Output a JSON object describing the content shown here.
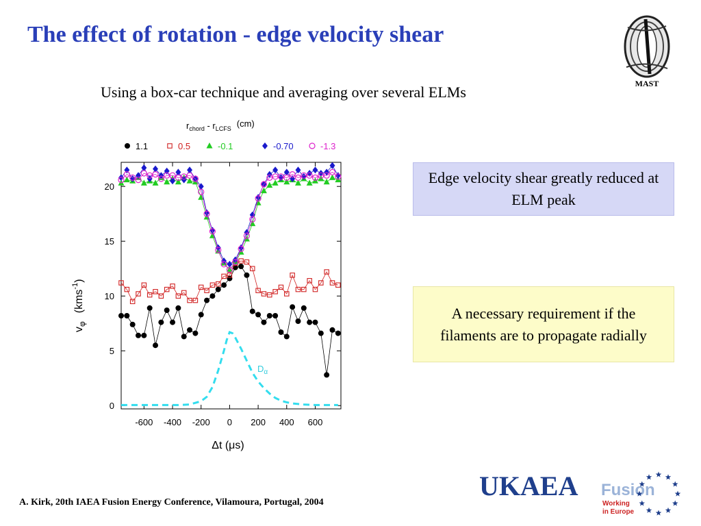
{
  "slide": {
    "title": "The effect of rotation - edge velocity shear",
    "subtitle": "Using a box-car technique and averaging over several ELMs",
    "box1": "Edge velocity shear greatly reduced at ELM peak",
    "box2": "A necessary requirement if the filaments are to propagate radially",
    "footer": "A. Kirk, 20th IAEA Fusion Energy Conference, Vilamoura, Portugal, 2004",
    "mast_label": "MAST",
    "ukaea_text": "UKAEA",
    "fusion_text": "Fusion",
    "working_text": "Working",
    "europe_text": "in Europe"
  },
  "chart_data": {
    "type": "scatter",
    "legend_title_main": "r",
    "legend_title_sub1": "chord",
    "legend_title_mid": " - r",
    "legend_title_sub2": "LCFS",
    "legend_title_unit": "(cm)",
    "xlabel": "Δt (μs)",
    "ylabel_main": "v",
    "ylabel_sub": "φ",
    "ylabel_unit": "(kms",
    "ylabel_exp": "-1",
    "ylabel_close": ")",
    "xlim": [
      -760,
      780
    ],
    "ylim": [
      -0.3,
      22.2
    ],
    "xticks": [
      -600,
      -400,
      -200,
      0,
      200,
      400,
      600
    ],
    "yticks": [
      0,
      5,
      10,
      15,
      20
    ],
    "dalpha_label": "D",
    "dalpha_sub": "α",
    "series": [
      {
        "name": "1.1",
        "color": "#000000",
        "marker": "filled-circle",
        "x": [
          -760,
          -720,
          -680,
          -640,
          -600,
          -560,
          -520,
          -480,
          -440,
          -400,
          -360,
          -320,
          -280,
          -240,
          -200,
          -160,
          -120,
          -80,
          -40,
          0,
          40,
          80,
          120,
          160,
          200,
          240,
          280,
          320,
          360,
          400,
          440,
          480,
          520,
          560,
          600,
          640,
          680,
          720,
          760
        ],
        "y": [
          8.2,
          8.2,
          7.4,
          6.4,
          6.4,
          8.9,
          5.5,
          7.6,
          8.7,
          7.6,
          8.9,
          6.3,
          6.9,
          6.6,
          8.3,
          9.6,
          10.0,
          10.6,
          11.0,
          11.6,
          12.6,
          12.7,
          11.9,
          8.6,
          8.3,
          7.6,
          8.2,
          8.2,
          6.7,
          6.3,
          9.0,
          7.7,
          8.9,
          7.6,
          7.6,
          6.6,
          2.8,
          6.9,
          6.6
        ]
      },
      {
        "name": "0.5",
        "color": "#d02020",
        "marker": "open-square",
        "x": [
          -760,
          -720,
          -680,
          -640,
          -600,
          -560,
          -520,
          -480,
          -440,
          -400,
          -360,
          -320,
          -280,
          -240,
          -200,
          -160,
          -120,
          -80,
          -40,
          0,
          40,
          80,
          120,
          160,
          200,
          240,
          280,
          320,
          360,
          400,
          440,
          480,
          520,
          560,
          600,
          640,
          680,
          720,
          760
        ],
        "y": [
          11.2,
          10.6,
          9.5,
          10.2,
          11.0,
          10.1,
          10.4,
          10.0,
          10.6,
          10.9,
          10.0,
          10.3,
          9.6,
          9.6,
          10.8,
          10.5,
          11.0,
          11.1,
          11.8,
          11.9,
          13.0,
          13.2,
          13.1,
          12.5,
          10.5,
          10.2,
          10.1,
          10.4,
          10.8,
          10.2,
          11.9,
          10.6,
          10.6,
          11.4,
          10.6,
          11.2,
          12.2,
          11.2,
          11.0
        ]
      },
      {
        "name": "-0.1",
        "color": "#22cc22",
        "marker": "filled-triangle",
        "x": [
          -760,
          -720,
          -680,
          -640,
          -600,
          -560,
          -520,
          -480,
          -440,
          -400,
          -360,
          -320,
          -280,
          -240,
          -200,
          -160,
          -120,
          -80,
          -40,
          0,
          40,
          80,
          120,
          160,
          200,
          240,
          280,
          320,
          360,
          400,
          440,
          480,
          520,
          560,
          600,
          640,
          680,
          720,
          760
        ],
        "y": [
          20.3,
          20.6,
          20.5,
          20.8,
          20.3,
          20.5,
          20.3,
          20.8,
          20.4,
          20.7,
          20.4,
          20.8,
          20.5,
          20.4,
          19.0,
          17.2,
          15.5,
          14.1,
          13.0,
          12.4,
          13.1,
          14.0,
          15.2,
          16.6,
          18.5,
          19.6,
          20.1,
          20.3,
          20.6,
          20.4,
          20.6,
          20.3,
          20.7,
          20.3,
          20.5,
          20.7,
          20.4,
          20.8,
          20.6
        ]
      },
      {
        "name": "-0.70",
        "color": "#1a1acc",
        "marker": "filled-diamond",
        "x": [
          -760,
          -720,
          -680,
          -640,
          -600,
          -560,
          -520,
          -480,
          -440,
          -400,
          -360,
          -320,
          -280,
          -240,
          -200,
          -160,
          -120,
          -80,
          -40,
          0,
          40,
          80,
          120,
          160,
          200,
          240,
          280,
          320,
          360,
          400,
          440,
          480,
          520,
          560,
          600,
          640,
          680,
          720,
          760
        ],
        "y": [
          20.8,
          21.5,
          20.7,
          21.0,
          21.7,
          20.7,
          21.6,
          21.0,
          21.4,
          20.5,
          21.3,
          20.6,
          21.5,
          20.7,
          20.0,
          17.6,
          16.0,
          14.4,
          13.2,
          12.9,
          13.3,
          14.4,
          15.8,
          17.4,
          19.0,
          20.2,
          21.1,
          21.5,
          20.8,
          21.3,
          20.7,
          21.5,
          20.9,
          21.2,
          21.5,
          21.2,
          21.3,
          21.9,
          21.0
        ]
      },
      {
        "name": "-1.3",
        "color": "#dd22cc",
        "marker": "open-circle",
        "x": [
          -760,
          -720,
          -680,
          -640,
          -600,
          -560,
          -520,
          -480,
          -440,
          -400,
          -360,
          -320,
          -280,
          -240,
          -200,
          -160,
          -120,
          -80,
          -40,
          0,
          40,
          80,
          120,
          160,
          200,
          240,
          280,
          320,
          360,
          400,
          440,
          480,
          520,
          560,
          600,
          640,
          680,
          720,
          760
        ],
        "y": [
          20.6,
          21.1,
          20.8,
          20.6,
          21.2,
          21.0,
          21.1,
          20.7,
          21.0,
          21.0,
          20.8,
          20.9,
          21.0,
          20.7,
          19.5,
          17.5,
          15.9,
          14.2,
          12.9,
          12.4,
          13.1,
          14.3,
          15.5,
          17.0,
          18.9,
          20.2,
          20.8,
          20.9,
          20.9,
          20.8,
          21.1,
          20.8,
          21.0,
          21.0,
          20.8,
          21.0,
          21.0,
          21.3,
          20.9
        ]
      },
      {
        "name": "Dα",
        "color": "#33ddee",
        "marker": "dashed-line",
        "x": [
          -760,
          -680,
          -600,
          -520,
          -440,
          -360,
          -280,
          -200,
          -160,
          -120,
          -80,
          -40,
          -20,
          0,
          20,
          40,
          80,
          120,
          160,
          200,
          240,
          280,
          320,
          360,
          400,
          440,
          520,
          600,
          680,
          760
        ],
        "y": [
          0.05,
          0.05,
          0.05,
          0.05,
          0.05,
          0.05,
          0.1,
          0.4,
          0.8,
          1.7,
          3.2,
          5.0,
          6.0,
          6.7,
          6.6,
          6.2,
          5.2,
          4.1,
          3.0,
          2.2,
          1.6,
          1.1,
          0.7,
          0.45,
          0.3,
          0.2,
          0.1,
          0.05,
          0.05,
          0.05
        ]
      }
    ]
  }
}
